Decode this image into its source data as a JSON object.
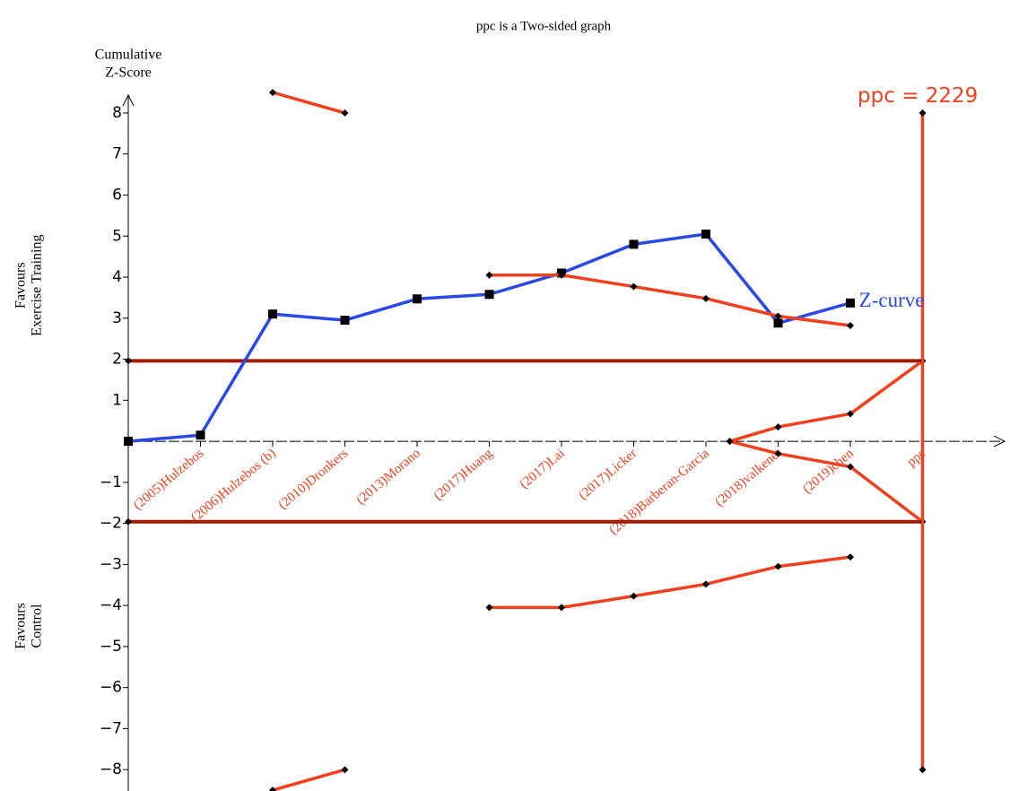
{
  "chart_data": {
    "type": "line",
    "title": "ppc is a Two-sided graph",
    "ylabel": [
      "Cumulative",
      "Z-Score"
    ],
    "side_labels": [
      {
        "lines": [
          "Favours",
          "Exercise Training"
        ],
        "at": 3.8
      },
      {
        "lines": [
          "Favours",
          "Control"
        ],
        "at": -4.5
      }
    ],
    "categories": [
      null,
      "(2005)Hulzebos",
      "(2006)Hulzebos (b)",
      "(2010)Dronkers",
      "(2013)Morano",
      "(2017)Huang",
      "(2017)Lai",
      "(2017)Licker",
      "(2018)Barberan-Garcia",
      "(2018)valkenet",
      "(2019)chen",
      "ppc"
    ],
    "ylim": [
      -8.52,
      8.6
    ],
    "yticks": [
      {
        "value": -8,
        "label": "−8"
      },
      {
        "value": -7,
        "label": "−7"
      },
      {
        "value": -6,
        "label": "−6"
      },
      {
        "value": -5,
        "label": "−5"
      },
      {
        "value": -4,
        "label": "−4"
      },
      {
        "value": -3,
        "label": "−3"
      },
      {
        "value": -2,
        "label": "−2"
      },
      {
        "value": -1,
        "label": "−1"
      },
      1,
      2,
      3,
      4,
      5,
      6,
      7,
      8
    ],
    "reference_lines": {
      "color": "#a01c00",
      "values": [
        1.96,
        -1.96
      ]
    },
    "series": [
      {
        "name": "Z-curve",
        "color": "#2a48e8",
        "marker": "square",
        "values": [
          0,
          0.15,
          3.1,
          2.95,
          3.47,
          3.58,
          4.1,
          4.8,
          5.05,
          2.88,
          3.37,
          null
        ]
      },
      {
        "color": "#f0401e",
        "marker": "diamond",
        "values": [
          null,
          null,
          8.5,
          8.0,
          null,
          4.05,
          4.05,
          3.77,
          3.48,
          3.05,
          2.82,
          null
        ]
      },
      {
        "color": "#f0401e",
        "marker": "diamond",
        "values": [
          null,
          null,
          -8.5,
          -8.0,
          null,
          -4.05,
          -4.05,
          -3.77,
          -3.48,
          -3.05,
          -2.82,
          null
        ]
      },
      {
        "color": "#f0401e",
        "marker": "diamond",
        "x": [
          8.33,
          9,
          10,
          11
        ],
        "values": [
          0,
          0.35,
          0.67,
          1.96
        ]
      },
      {
        "color": "#f0401e",
        "marker": "diamond",
        "x": [
          8.33,
          9,
          10,
          11
        ],
        "values": [
          0,
          -0.3,
          -0.62,
          -1.96
        ]
      },
      {
        "color": "#f0401e",
        "marker": "diamond",
        "x": [
          11,
          11
        ],
        "values": [
          8,
          -8
        ]
      }
    ],
    "annotations": [
      {
        "text": "ppc = 2229",
        "color": "#f0401e",
        "x": 10.1,
        "y": 8.4
      },
      {
        "text": "Z-curve",
        "color": "#2a48e8",
        "x": 10.12,
        "y": 3.4
      }
    ]
  }
}
